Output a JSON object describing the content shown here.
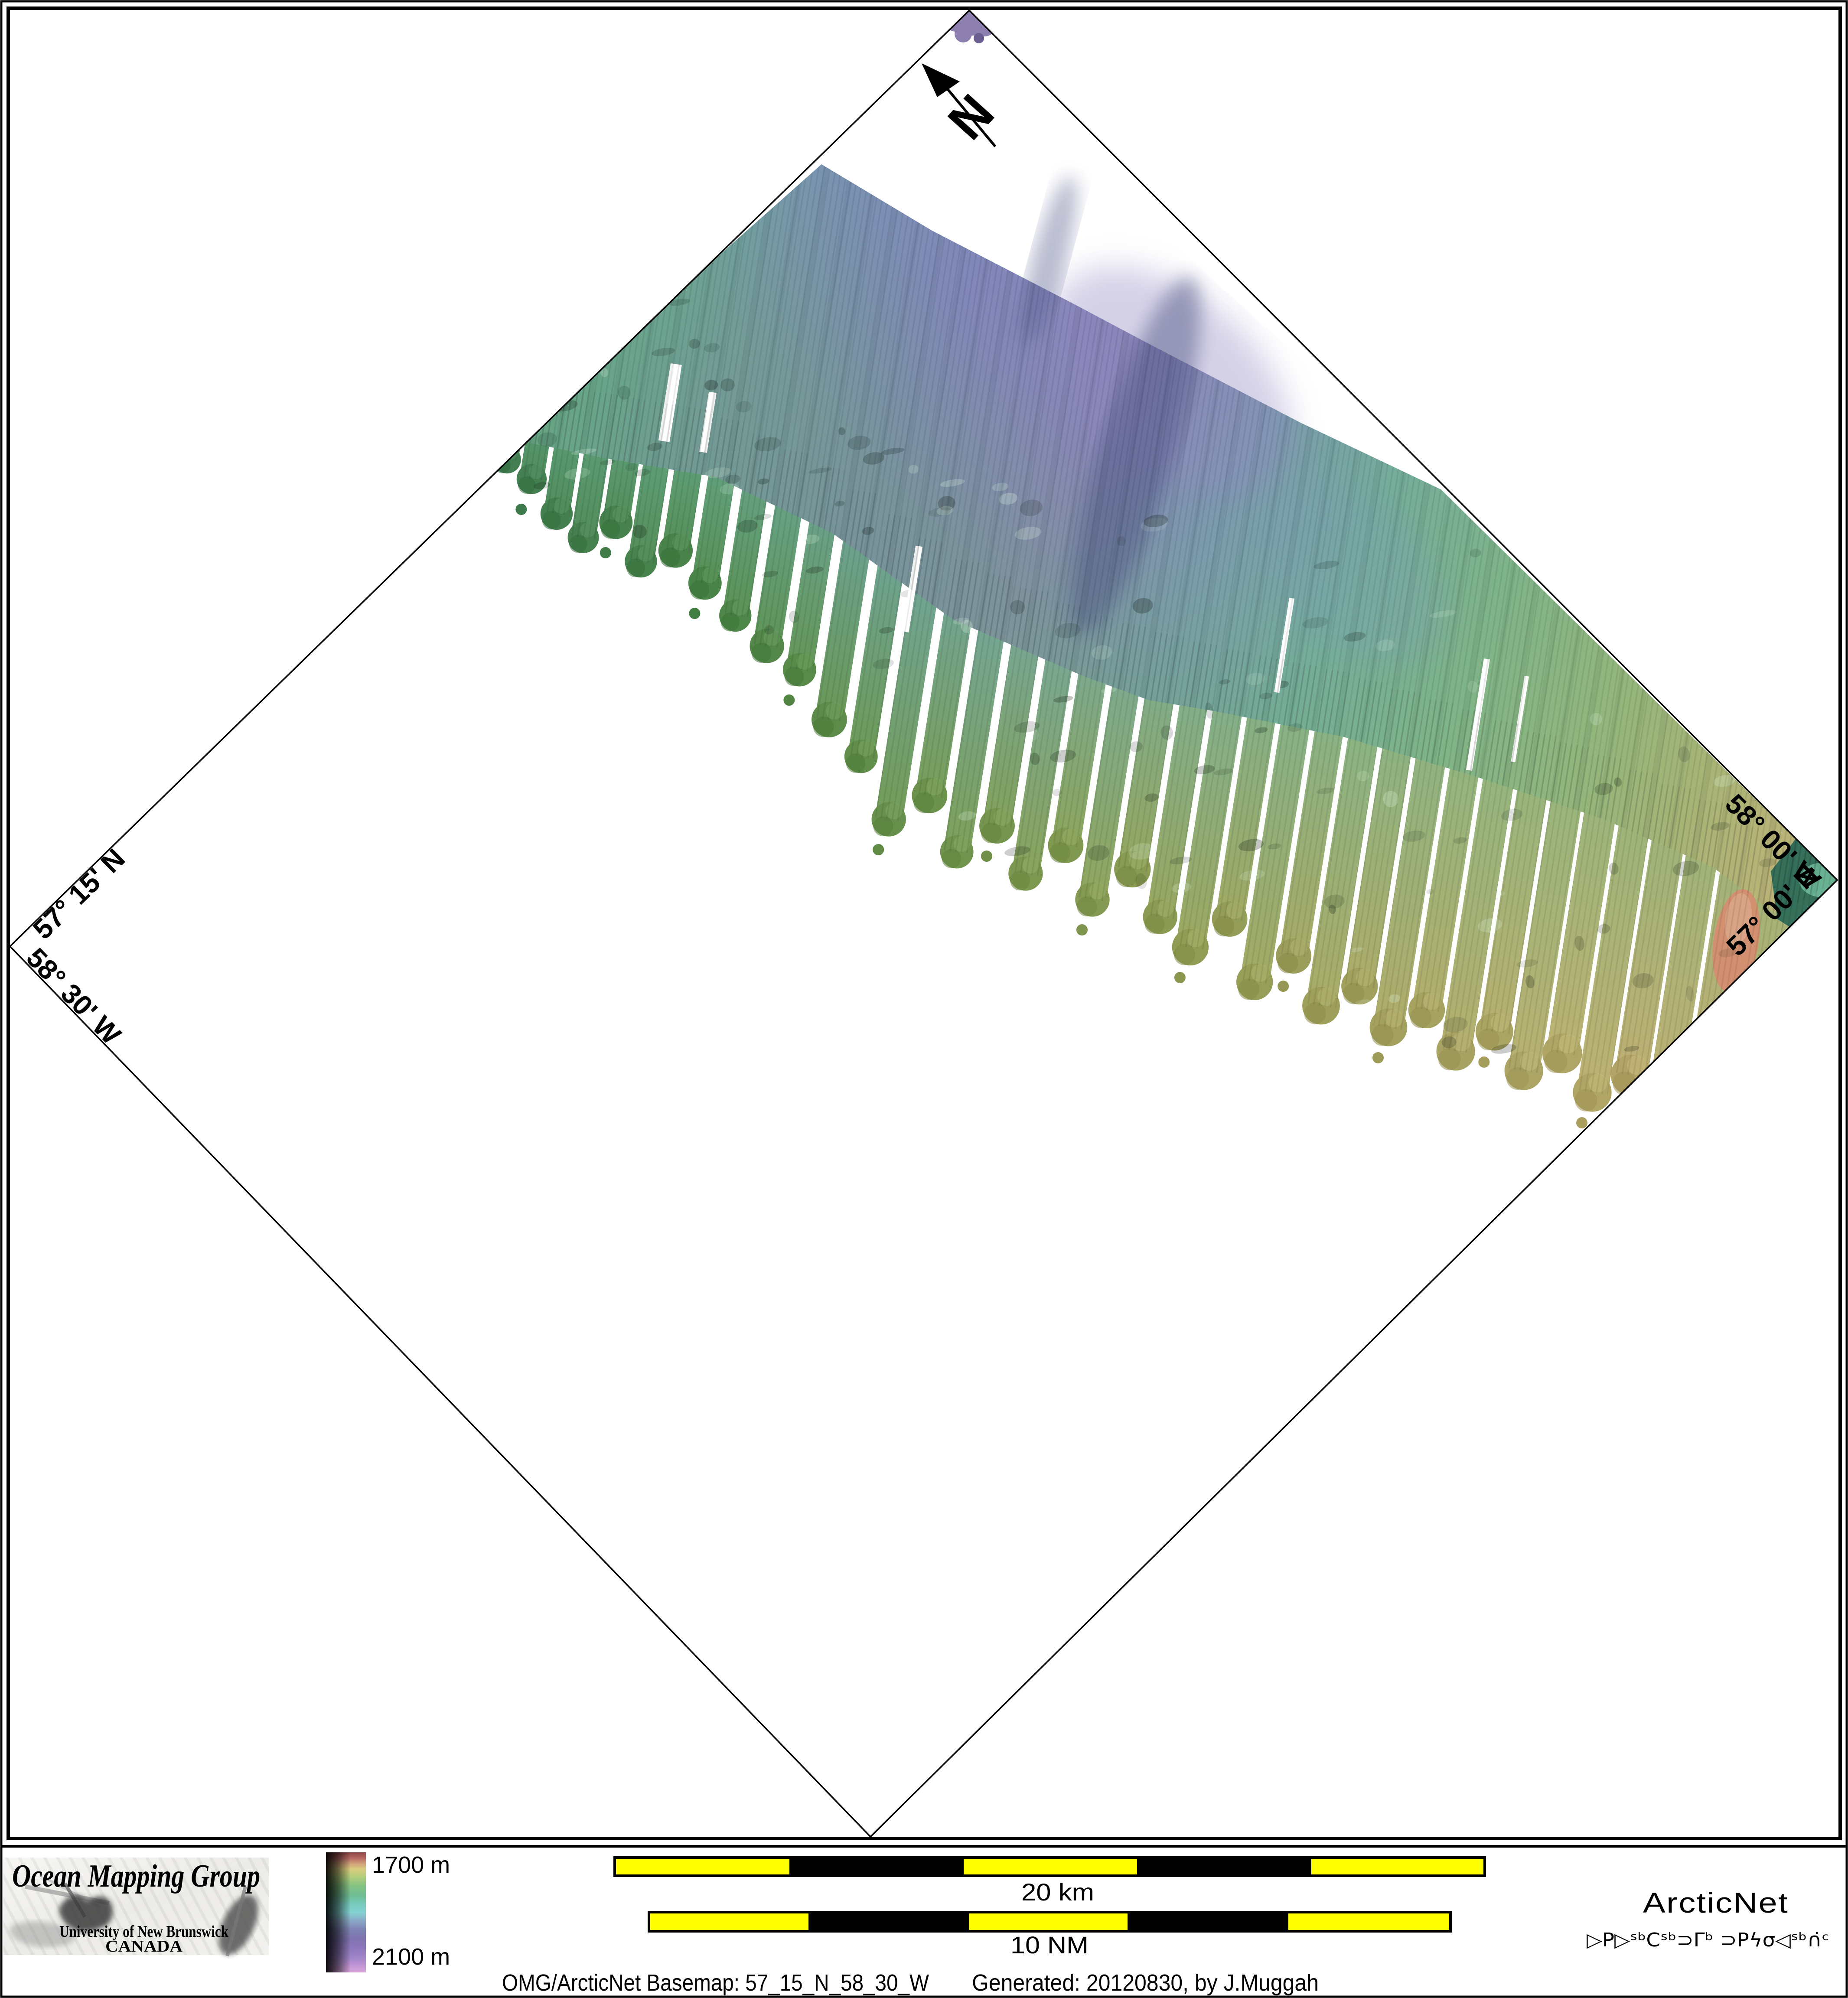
{
  "page": {
    "background": "#ffffff",
    "border_color": "#000000"
  },
  "map": {
    "north_label": "N",
    "graticule_labels": [
      {
        "id": "lat-upper-left",
        "text": "57° 15' N",
        "edge": "upper-left"
      },
      {
        "id": "lon-lower-left",
        "text": "58° 30' W",
        "edge": "lower-left"
      },
      {
        "id": "lon-upper-right",
        "text": "58° 00' W",
        "edge": "upper-right"
      },
      {
        "id": "lat-lower-right",
        "text": "57° 00' N",
        "edge": "lower-right"
      }
    ]
  },
  "legend": {
    "omg": {
      "title": "Ocean Mapping Group",
      "org": "University of New Brunswick",
      "country": "CANADA",
      "title_color": "#a31215",
      "org_color": "#2626a8"
    },
    "depth_scale": {
      "top": "1700 m",
      "bottom": "2100 m",
      "stops": [
        "#8f4548",
        "#b86a63",
        "#d2a87c",
        "#d9cd7e",
        "#b5cf7c",
        "#85c383",
        "#6fbd95",
        "#79ccc0",
        "#83d3d3",
        "#8aa8c6",
        "#7e85b4",
        "#7f74b0",
        "#8f78be",
        "#a186c9",
        "#c094d4",
        "#daa6dc"
      ]
    },
    "scale_bars": {
      "km": {
        "label": "20 km",
        "segments": 5
      },
      "nm": {
        "label": "10 NM",
        "segments": 5
      },
      "segment_yellow": "#ffff00",
      "segment_black": "#000000"
    },
    "arcticnet": {
      "name": "ArcticNet",
      "name_color": "#7fadce",
      "syllabics": "ᐅᑭᐅᖅᑕᖅᑐᒥᒃ ᑐᑭᓯᓂᐊᖅᑏᑦ",
      "syllabics_display": "▷P▷ˢᵇCˢᵇ⊃Γᵇ ⊃Pϟσ◁ˢᵇ∩̇ᶜ",
      "syllabics_color": "#2f3e57"
    },
    "caption": {
      "left": "OMG/ArcticNet Basemap: 57_15_N_58_30_W",
      "right": "Generated: 20120830, by J.Muggah"
    }
  }
}
